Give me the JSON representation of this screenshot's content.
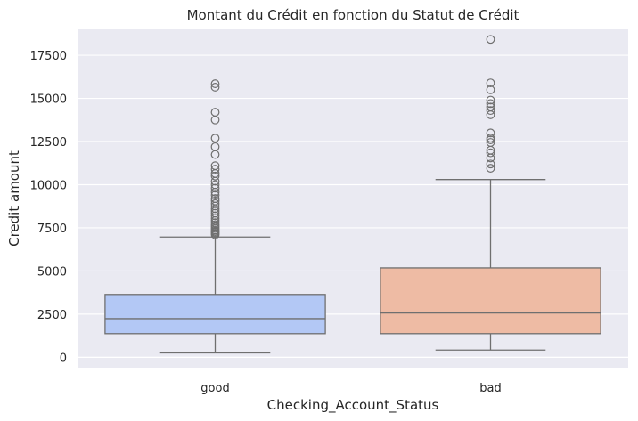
{
  "chart_data": {
    "type": "box",
    "title": "Montant du Crédit en fonction du Statut de Crédit",
    "xlabel": "Checking_Account_Status",
    "ylabel": "Credit amount",
    "ylim": [
      -600,
      19000
    ],
    "yticks": [
      0,
      2500,
      5000,
      7500,
      10000,
      12500,
      15000,
      17500
    ],
    "grid": true,
    "categories": [
      "good",
      "bad"
    ],
    "boxes": [
      {
        "category": "good",
        "color": "#b3c8f5",
        "whisker_low": 250,
        "q1": 1370,
        "median": 2240,
        "q3": 3640,
        "whisker_high": 6970,
        "outliers": [
          7100,
          7180,
          7250,
          7310,
          7380,
          7470,
          7560,
          7680,
          7800,
          7920,
          8050,
          8200,
          8350,
          8470,
          8610,
          8760,
          8900,
          9060,
          9200,
          9400,
          9570,
          9800,
          10000,
          10200,
          10500,
          10650,
          10900,
          11100,
          11750,
          12200,
          12700,
          13750,
          14200,
          15650,
          15850
        ]
      },
      {
        "category": "bad",
        "color": "#eebba4",
        "whisker_low": 420,
        "q1": 1370,
        "median": 2570,
        "q3": 5180,
        "whisker_high": 10300,
        "outliers": [
          10950,
          11200,
          11550,
          11850,
          12000,
          12450,
          12600,
          12700,
          13000,
          14050,
          14300,
          14500,
          14700,
          14900,
          15500,
          15900,
          18420
        ]
      }
    ]
  }
}
